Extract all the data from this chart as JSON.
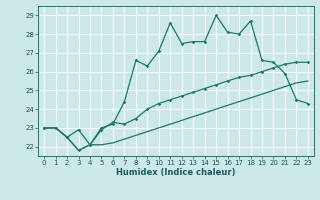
{
  "title": "",
  "xlabel": "Humidex (Indice chaleur)",
  "bg_color": "#cce8e8",
  "grid_color": "#ffffff",
  "line_color": "#1a7a6a",
  "xlim": [
    -0.5,
    23.5
  ],
  "ylim": [
    21.5,
    29.5
  ],
  "xticks": [
    0,
    1,
    2,
    3,
    4,
    5,
    6,
    7,
    8,
    9,
    10,
    11,
    12,
    13,
    14,
    15,
    16,
    17,
    18,
    19,
    20,
    21,
    22,
    23
  ],
  "yticks": [
    22,
    23,
    24,
    25,
    26,
    27,
    28,
    29
  ],
  "line1_x": [
    0,
    1,
    2,
    3,
    4,
    5,
    6,
    7,
    8,
    9,
    10,
    11,
    12,
    13,
    14,
    15,
    16,
    17,
    18,
    19,
    20,
    21,
    22,
    23
  ],
  "line1_y": [
    23.0,
    23.0,
    22.5,
    21.8,
    22.1,
    23.0,
    23.2,
    24.4,
    26.6,
    26.3,
    27.1,
    28.6,
    27.5,
    27.6,
    27.6,
    29.0,
    28.1,
    28.0,
    28.7,
    26.6,
    26.5,
    25.9,
    24.5,
    24.3
  ],
  "line2_x": [
    0,
    1,
    2,
    3,
    4,
    5,
    6,
    7,
    8,
    9,
    10,
    11,
    12,
    13,
    14,
    15,
    16,
    17,
    18,
    19,
    20,
    21,
    22,
    23
  ],
  "line2_y": [
    23.0,
    23.0,
    22.5,
    22.9,
    22.1,
    22.9,
    23.3,
    23.2,
    23.5,
    24.0,
    24.3,
    24.5,
    24.7,
    24.9,
    25.1,
    25.3,
    25.5,
    25.7,
    25.8,
    26.0,
    26.2,
    26.4,
    26.5,
    26.5
  ],
  "line3_x": [
    0,
    1,
    2,
    3,
    4,
    5,
    6,
    7,
    8,
    9,
    10,
    11,
    12,
    13,
    14,
    15,
    16,
    17,
    18,
    19,
    20,
    21,
    22,
    23
  ],
  "line3_y": [
    23.0,
    23.0,
    22.5,
    21.8,
    22.1,
    22.1,
    22.2,
    22.4,
    22.6,
    22.8,
    23.0,
    23.2,
    23.4,
    23.6,
    23.8,
    24.0,
    24.2,
    24.4,
    24.6,
    24.8,
    25.0,
    25.2,
    25.4,
    25.5
  ],
  "xlabel_fontsize": 6.0,
  "tick_fontsize": 5.0
}
